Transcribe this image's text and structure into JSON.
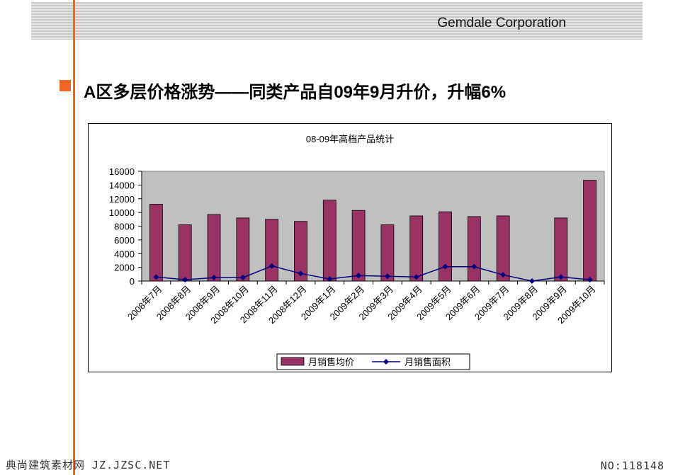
{
  "header": {
    "company": "Gemdale Corporation"
  },
  "slide": {
    "title": "A区多层价格涨势——同类产品自09年9月升价，升幅6%"
  },
  "colors": {
    "accent": "#f26522",
    "bar": "#993366",
    "line": "#000080",
    "plot_bg": "#c0c0c0"
  },
  "footer": {
    "left": "典尚建筑素材网 JZ.JZSC.NET",
    "right": "NO:118148"
  },
  "chart_data": {
    "type": "bar",
    "title": "08-09年高档产品统计",
    "categories": [
      "2008年7月",
      "2008年8月",
      "2008年9月",
      "2008年10月",
      "2008年11月",
      "2008年12月",
      "2009年1月",
      "2009年2月",
      "2009年3月",
      "2009年4月",
      "2009年5月",
      "2009年6月",
      "2009年7月",
      "2009年8月",
      "2009年9月",
      "2009年10月"
    ],
    "series": [
      {
        "name": "月销售均价",
        "kind": "bar",
        "values": [
          11200,
          8200,
          9700,
          9200,
          9000,
          8700,
          11800,
          10300,
          8200,
          9500,
          10100,
          9400,
          9500,
          0,
          9200,
          14700
        ]
      },
      {
        "name": "月销售面积",
        "kind": "line",
        "values": [
          600,
          200,
          500,
          500,
          2200,
          1100,
          300,
          800,
          700,
          600,
          2100,
          2100,
          900,
          0,
          600,
          200
        ]
      }
    ],
    "ylim": [
      0,
      16000
    ],
    "yticks": [
      0,
      2000,
      4000,
      6000,
      8000,
      10000,
      12000,
      14000,
      16000
    ],
    "grid": false,
    "legend_position": "bottom"
  }
}
